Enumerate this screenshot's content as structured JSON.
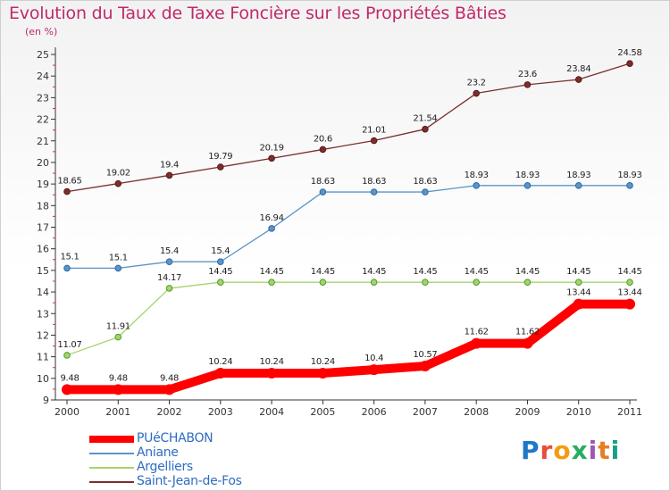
{
  "title": "Evolution du Taux de Taxe Foncière sur les Propriétés Bâties",
  "unit": "(en %)",
  "logo": {
    "text": "Proxiti",
    "colors": [
      "#1f77c9",
      "#e74c3c",
      "#f39c12",
      "#27ae60",
      "#9b59b6",
      "#e67e22",
      "#16a085"
    ]
  },
  "chart_data": {
    "type": "line",
    "title": "Evolution du Taux de Taxe Foncière sur les Propriétés Bâties",
    "ylabel": "(en %)",
    "x": [
      "2000",
      "2001",
      "2002",
      "2003",
      "2004",
      "2005",
      "2006",
      "2007",
      "2008",
      "2009",
      "2010",
      "2011"
    ],
    "ylim": [
      9,
      25
    ],
    "yticks": [
      9,
      10,
      11,
      12,
      13,
      14,
      15,
      16,
      17,
      18,
      19,
      20,
      21,
      22,
      23,
      24,
      25
    ],
    "grid": false,
    "legend_position": "bottom-left",
    "series": [
      {
        "name": "PUéCHABON",
        "color": "#ff0000",
        "values": [
          9.48,
          9.48,
          9.48,
          10.24,
          10.24,
          10.24,
          10.4,
          10.57,
          11.62,
          11.62,
          13.44,
          13.44
        ],
        "labels": [
          "9.48",
          "9.48",
          "9.48",
          "10.24",
          "10.24",
          "10.24",
          "10.4",
          "10.57",
          "11.62",
          "11.62",
          "13.44",
          "13.44"
        ]
      },
      {
        "name": "Aniane",
        "color": "#5b95c6",
        "values": [
          15.1,
          15.1,
          15.4,
          15.4,
          16.94,
          18.63,
          18.63,
          18.63,
          18.93,
          18.93,
          18.93,
          18.93
        ],
        "labels": [
          "15.1",
          "15.1",
          "15.4",
          "15.4",
          "16.94",
          "18.63",
          "18.63",
          "18.63",
          "18.93",
          "18.93",
          "18.93",
          "18.93"
        ]
      },
      {
        "name": "Argelliers",
        "color": "#a6d36b",
        "values": [
          11.07,
          11.91,
          14.17,
          14.45,
          14.45,
          14.45,
          14.45,
          14.45,
          14.45,
          14.45,
          14.45,
          14.45
        ],
        "labels": [
          "11.07",
          "11.91",
          "14.17",
          "14.45",
          "14.45",
          "14.45",
          "14.45",
          "14.45",
          "14.45",
          "14.45",
          "14.45",
          "14.45"
        ]
      },
      {
        "name": "Saint-Jean-de-Fos",
        "color": "#7a2e2e",
        "values": [
          18.65,
          19.02,
          19.4,
          19.79,
          20.19,
          20.6,
          21.01,
          21.54,
          23.2,
          23.6,
          23.84,
          24.58
        ],
        "labels": [
          "18.65",
          "19.02",
          "19.4",
          "19.79",
          "20.19",
          "20.6",
          "21.01",
          "21.54",
          "23.2",
          "23.6",
          "23.84",
          "24.58"
        ]
      }
    ]
  }
}
